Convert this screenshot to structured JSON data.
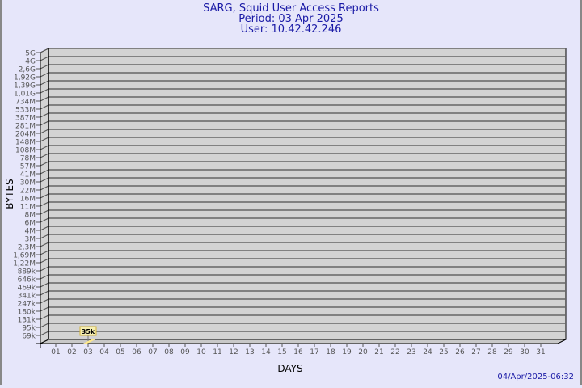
{
  "title_lines": [
    "SARG, Squid User Access Reports",
    "Period: 03 Apr 2025",
    "User: 10.42.42.246"
  ],
  "timestamp": "04/Apr/2025-06:32",
  "colors": {
    "background": "#e6e6fa",
    "plot": "#d3d3d3",
    "title": "#1a1aa6",
    "bar": "#ffe98a"
  },
  "chart_data": {
    "type": "bar",
    "xlabel": "DAYS",
    "ylabel": "BYTES",
    "y_scale": "log",
    "grid": true,
    "categories": [
      "01",
      "02",
      "03",
      "04",
      "05",
      "06",
      "07",
      "08",
      "09",
      "10",
      "11",
      "12",
      "13",
      "14",
      "15",
      "16",
      "17",
      "18",
      "19",
      "20",
      "21",
      "22",
      "23",
      "24",
      "25",
      "26",
      "27",
      "28",
      "29",
      "30",
      "31"
    ],
    "y_tick_labels": [
      "5G",
      "4G",
      "2,6G",
      "1,92G",
      "1,39G",
      "1,01G",
      "734M",
      "533M",
      "387M",
      "281M",
      "204M",
      "148M",
      "108M",
      "78M",
      "57M",
      "41M",
      "30M",
      "22M",
      "16M",
      "11M",
      "8M",
      "6M",
      "4M",
      "3M",
      "2,3M",
      "1,69M",
      "1,22M",
      "889k",
      "646k",
      "469k",
      "341k",
      "247k",
      "180k",
      "131k",
      "95k",
      "69k"
    ],
    "series": [
      {
        "values": [
          {
            "category": "03",
            "value": 35000,
            "label": "35k"
          }
        ]
      }
    ]
  }
}
